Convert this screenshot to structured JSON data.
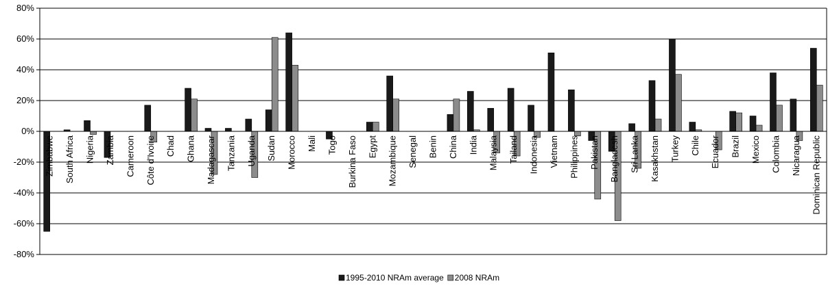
{
  "chart_data": {
    "type": "bar",
    "title": "",
    "xlabel": "",
    "ylabel": "",
    "ylim": [
      -80,
      80
    ],
    "yticks": [
      -80,
      -60,
      -40,
      -20,
      0,
      20,
      40,
      60,
      80
    ],
    "ytick_suffix": "%",
    "grid": true,
    "legend_position": "bottom",
    "categories": [
      "Zimbabwe",
      "South Africa",
      "Nigeria",
      "Zambia",
      "Cameroon",
      "Côte d'Ivoire",
      "Chad",
      "Ghana",
      "Madagascar",
      "Tanzania",
      "Uganda",
      "Sudan",
      "Morocco",
      "Mali",
      "Togo",
      "Burkina Faso",
      "Egypt",
      "Mozambique",
      "Senegal",
      "Benin",
      "China",
      "India",
      "Malaysia",
      "Tailand",
      "Indonesia",
      "Vietnam",
      "Philippines",
      "Pakistan",
      "Bangladesh",
      "Sri Lanka",
      "Kasakhstan",
      "Turkey",
      "Chile",
      "Ecuador",
      "Brazil",
      "Mexico",
      "Colombia",
      "Nicaragua",
      "Dominican Republic"
    ],
    "series": [
      {
        "name": "1995-2010 NRAm average",
        "color": "#1a1a1a",
        "values": [
          -65,
          1,
          7,
          -17,
          0,
          17,
          0,
          28,
          2,
          2,
          8,
          14,
          64,
          0,
          -5,
          0,
          6,
          36,
          0,
          0,
          11,
          26,
          15,
          28,
          17,
          51,
          27,
          -6,
          -13,
          5,
          33,
          60,
          6,
          0,
          13,
          10,
          38,
          21,
          54
        ]
      },
      {
        "name": "2008 NRAm",
        "color": "#8c8c8c",
        "values": [
          0,
          0,
          -2,
          0,
          0,
          -7,
          0,
          21,
          -28,
          0,
          -30,
          61,
          43,
          0,
          0,
          0,
          6,
          21,
          0,
          0,
          21,
          1,
          -14,
          -16,
          -4,
          0,
          -3,
          -44,
          -58,
          -24,
          8,
          37,
          1,
          -12,
          12,
          4,
          17,
          -6,
          30
        ]
      }
    ]
  }
}
